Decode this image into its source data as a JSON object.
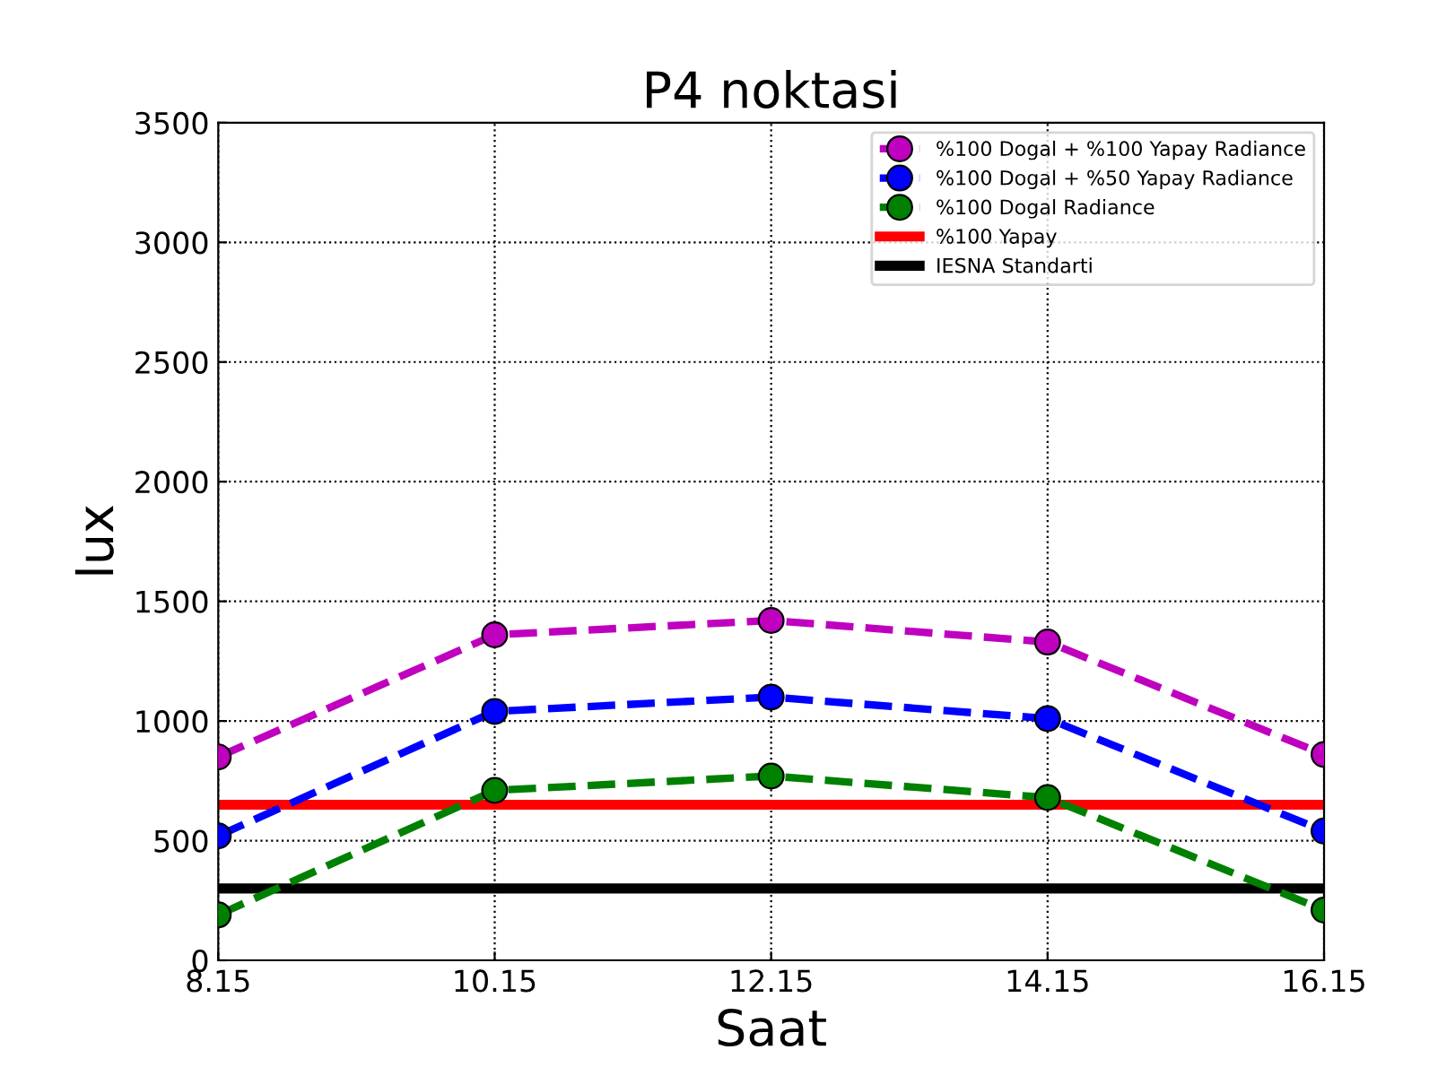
{
  "chart_data": {
    "type": "line",
    "title": "P4 noktasi",
    "xlabel": "Saat",
    "ylabel": "lux",
    "x": [
      8.15,
      10.15,
      12.15,
      14.15,
      16.15
    ],
    "series": [
      {
        "name": "%100 Dogal + %100 Yapay Radiance",
        "color": "#bf00bf",
        "values": [
          850,
          1360,
          1420,
          1330,
          860
        ],
        "marker": "circle",
        "line_style": "dashed"
      },
      {
        "name": "%100 Dogal + %50 Yapay Radiance",
        "color": "#0000ff",
        "values": [
          520,
          1040,
          1100,
          1010,
          540
        ],
        "marker": "circle",
        "line_style": "dashed"
      },
      {
        "name": "%100 Dogal Radiance",
        "color": "#008000",
        "values": [
          190,
          710,
          770,
          680,
          210
        ],
        "marker": "circle",
        "line_style": "dashed"
      }
    ],
    "ref_lines": [
      {
        "axis": "y",
        "value": 650,
        "label": "%100 Yapay",
        "color": "#ff0000",
        "line_style": "solid"
      },
      {
        "axis": "y",
        "value": 300,
        "label": "IESNA Standarti",
        "color": "#000000",
        "line_style": "solid"
      }
    ],
    "xlim": [
      8.15,
      16.15
    ],
    "xticks": [
      8.15,
      10.15,
      12.15,
      14.15,
      16.15
    ],
    "ylim": [
      0,
      3500
    ],
    "yticks": [
      0,
      500,
      1000,
      1500,
      2000,
      2500,
      3000,
      3500
    ],
    "grid": true,
    "legend": "top right"
  }
}
